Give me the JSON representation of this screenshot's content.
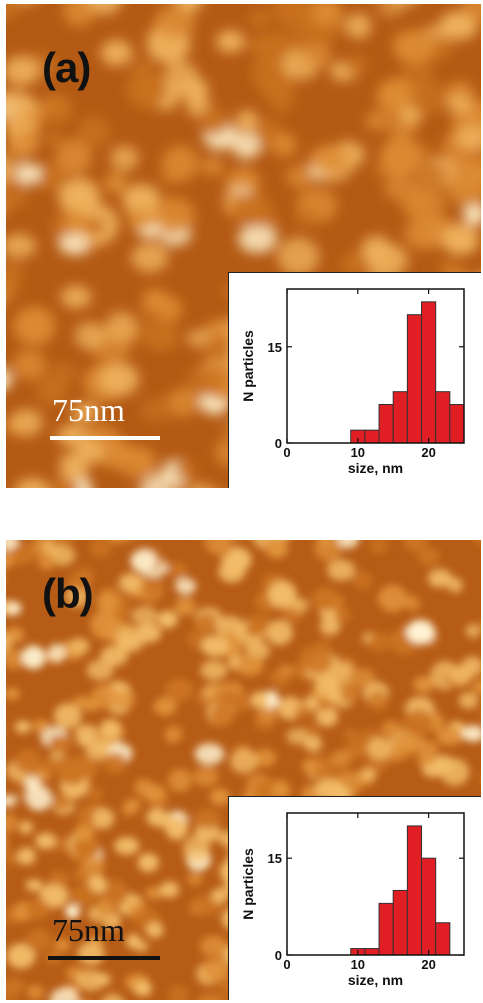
{
  "panels": [
    {
      "label": "(a)",
      "scale_bar": "75nm",
      "scale_color": "#ffffff",
      "chart_data": {
        "type": "bar",
        "xlabel": "size, nm",
        "ylabel": "N particles",
        "xlim": [
          0,
          25
        ],
        "ylim": [
          0,
          24
        ],
        "xticks": [
          0,
          10,
          20
        ],
        "yticks": [
          0,
          15
        ],
        "bin_width": 2,
        "x": [
          10,
          12,
          14,
          16,
          18,
          20,
          22,
          24
        ],
        "values": [
          2,
          2,
          6,
          8,
          20,
          22,
          8,
          6
        ]
      }
    },
    {
      "label": "(b)",
      "scale_bar": "75nm",
      "scale_color": "#111111",
      "chart_data": {
        "type": "bar",
        "xlabel": "size, nm",
        "ylabel": "N particles",
        "xlim": [
          0,
          25
        ],
        "ylim": [
          0,
          22
        ],
        "xticks": [
          0,
          10,
          20
        ],
        "yticks": [
          0,
          15
        ],
        "bin_width": 2,
        "x": [
          10,
          12,
          14,
          16,
          18,
          20,
          22
        ],
        "values": [
          1,
          1,
          8,
          10,
          20,
          15,
          5
        ]
      }
    }
  ]
}
